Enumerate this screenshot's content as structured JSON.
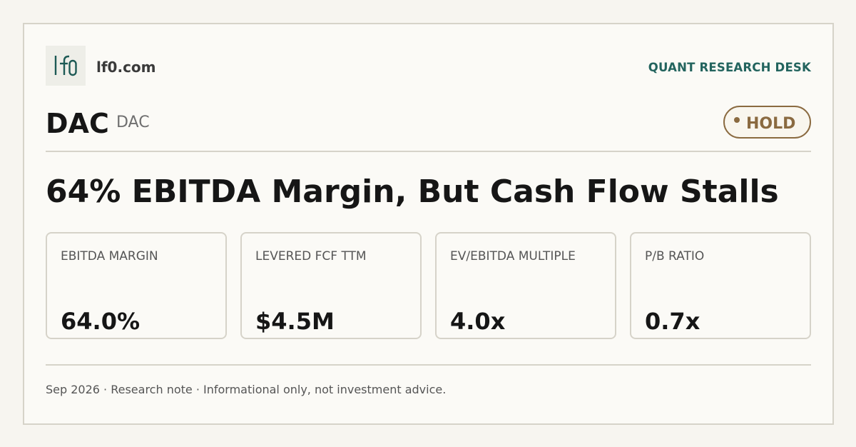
{
  "brand": {
    "logo_text": "lf0",
    "site": "lf0.com",
    "desk": "QUANT RESEARCH DESK",
    "accent_color": "#23645e"
  },
  "ticker": {
    "symbol": "DAC",
    "sub": "DAC"
  },
  "rating": {
    "label": "HOLD",
    "color": "#8a6a40"
  },
  "headline": "64% EBITDA Margin, But Cash Flow Stalls",
  "metrics": [
    {
      "label": "EBITDA MARGIN",
      "value": "64.0%"
    },
    {
      "label": "LEVERED FCF TTM",
      "value": "$4.5M"
    },
    {
      "label": "EV/EBITDA MULTIPLE",
      "value": "4.0x"
    },
    {
      "label": "P/B RATIO",
      "value": "0.7x"
    }
  ],
  "footer": "Sep 2026 · Research note · Informational only, not investment advice."
}
